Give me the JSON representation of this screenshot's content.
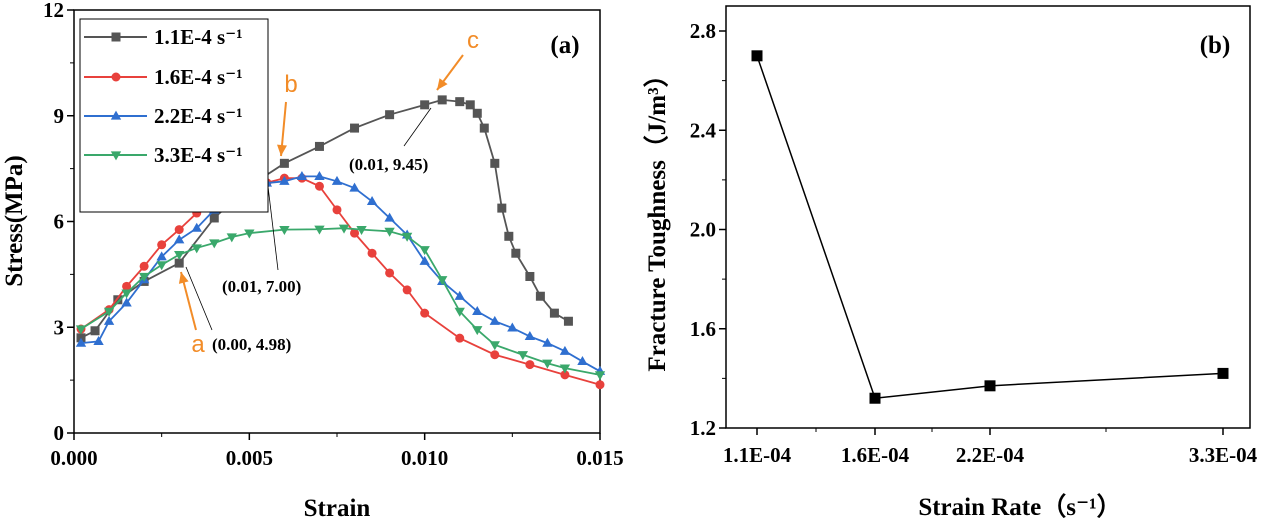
{
  "chart_data": [
    {
      "type": "line",
      "panel_label": "(a)",
      "xlabel": "Strain",
      "ylabel": "Stress(MPa)",
      "xlim": [
        0,
        0.015
      ],
      "ylim": [
        0,
        12
      ],
      "xticks": [
        "0.000",
        "0.005",
        "0.010",
        "0.015"
      ],
      "xtick_values": [
        0,
        0.005,
        0.01,
        0.015
      ],
      "yticks": [
        "0",
        "3",
        "6",
        "9",
        "12"
      ],
      "ytick_values": [
        0,
        3,
        6,
        9,
        12
      ],
      "legend_position": "top-left",
      "series": [
        {
          "name": "1.1E-4 s⁻¹",
          "color": "#555555",
          "marker": "square",
          "x": [
            0.0002,
            0.0006,
            0.00125,
            0.002,
            0.003,
            0.004,
            0.005,
            0.006,
            0.007,
            0.008,
            0.009,
            0.01,
            0.0105,
            0.011,
            0.0113,
            0.0115,
            0.0117,
            0.012,
            0.0122,
            0.0124,
            0.0126,
            0.013,
            0.0133,
            0.0137,
            0.0141
          ],
          "y": [
            2.7,
            2.9,
            3.78,
            4.3,
            4.82,
            6.1,
            7.0,
            7.65,
            8.13,
            8.65,
            9.03,
            9.31,
            9.45,
            9.4,
            9.31,
            9.07,
            8.65,
            7.65,
            6.38,
            5.58,
            5.1,
            4.44,
            3.88,
            3.4,
            3.17
          ]
        },
        {
          "name": "1.6E-4 s⁻¹",
          "color": "#e8413c",
          "marker": "circle",
          "x": [
            0.0002,
            0.001,
            0.0015,
            0.002,
            0.0025,
            0.003,
            0.0035,
            0.004,
            0.0045,
            0.005,
            0.0055,
            0.006,
            0.0065,
            0.007,
            0.0075,
            0.008,
            0.0085,
            0.009,
            0.0095,
            0.01,
            0.011,
            0.012,
            0.013,
            0.014,
            0.015
          ],
          "y": [
            2.95,
            3.5,
            4.16,
            4.73,
            5.34,
            5.77,
            6.24,
            6.52,
            6.76,
            6.9,
            7.1,
            7.23,
            7.23,
            7.0,
            6.33,
            5.67,
            5.1,
            4.54,
            4.06,
            3.4,
            2.69,
            2.22,
            1.94,
            1.65,
            1.37
          ]
        },
        {
          "name": "2.2E-4 s⁻¹",
          "color": "#2f6fd0",
          "marker": "triangle-up",
          "x": [
            0.0002,
            0.0007,
            0.001,
            0.0015,
            0.002,
            0.0025,
            0.003,
            0.0035,
            0.004,
            0.0045,
            0.005,
            0.0055,
            0.006,
            0.0065,
            0.007,
            0.0075,
            0.008,
            0.0085,
            0.009,
            0.0095,
            0.01,
            0.0105,
            0.011,
            0.0115,
            0.012,
            0.0125,
            0.013,
            0.0135,
            0.014,
            0.0145,
            0.015
          ],
          "y": [
            2.55,
            2.6,
            3.17,
            3.69,
            4.35,
            5.0,
            5.48,
            5.81,
            6.33,
            6.66,
            7.0,
            7.09,
            7.14,
            7.28,
            7.28,
            7.14,
            6.95,
            6.57,
            6.1,
            5.62,
            4.87,
            4.3,
            3.88,
            3.45,
            3.17,
            2.98,
            2.74,
            2.55,
            2.32,
            2.03,
            1.75
          ]
        },
        {
          "name": "3.3E-4 s⁻¹",
          "color": "#3aa86b",
          "marker": "triangle-down",
          "x": [
            0.0002,
            0.001,
            0.0015,
            0.002,
            0.0025,
            0.003,
            0.0035,
            0.004,
            0.0045,
            0.005,
            0.006,
            0.007,
            0.0077,
            0.0082,
            0.009,
            0.0095,
            0.01,
            0.0105,
            0.011,
            0.0115,
            0.012,
            0.0128,
            0.0135,
            0.014,
            0.015
          ],
          "y": [
            2.95,
            3.45,
            3.97,
            4.44,
            4.77,
            5.06,
            5.25,
            5.39,
            5.56,
            5.67,
            5.77,
            5.78,
            5.81,
            5.77,
            5.72,
            5.58,
            5.2,
            4.35,
            3.45,
            2.93,
            2.5,
            2.22,
            1.98,
            1.84,
            1.65
          ]
        }
      ],
      "annotations": [
        {
          "letter": "a",
          "text": "(0.00, 4.98)",
          "color": "#f28c28"
        },
        {
          "letter": "b",
          "text": "(0.01, 7.00)",
          "color": "#f28c28"
        },
        {
          "letter": "c",
          "text": "(0.01, 9.45)",
          "color": "#f28c28"
        }
      ]
    },
    {
      "type": "line",
      "panel_label": "(b)",
      "xlabel": "Strain Rate（s⁻¹）",
      "ylabel": "Fracture Toughness（J/m³）",
      "categories": [
        "1.1E-04",
        "1.6E-04",
        "2.2E-04",
        "3.3E-04"
      ],
      "values": [
        2.7,
        1.32,
        1.37,
        1.42
      ],
      "ylim": [
        1.2,
        2.9
      ],
      "yticks": [
        "1.2",
        "1.6",
        "2.0",
        "2.4",
        "2.8"
      ],
      "ytick_values": [
        1.2,
        1.6,
        2.0,
        2.4,
        2.8
      ],
      "color": "#000000",
      "marker": "square"
    }
  ]
}
